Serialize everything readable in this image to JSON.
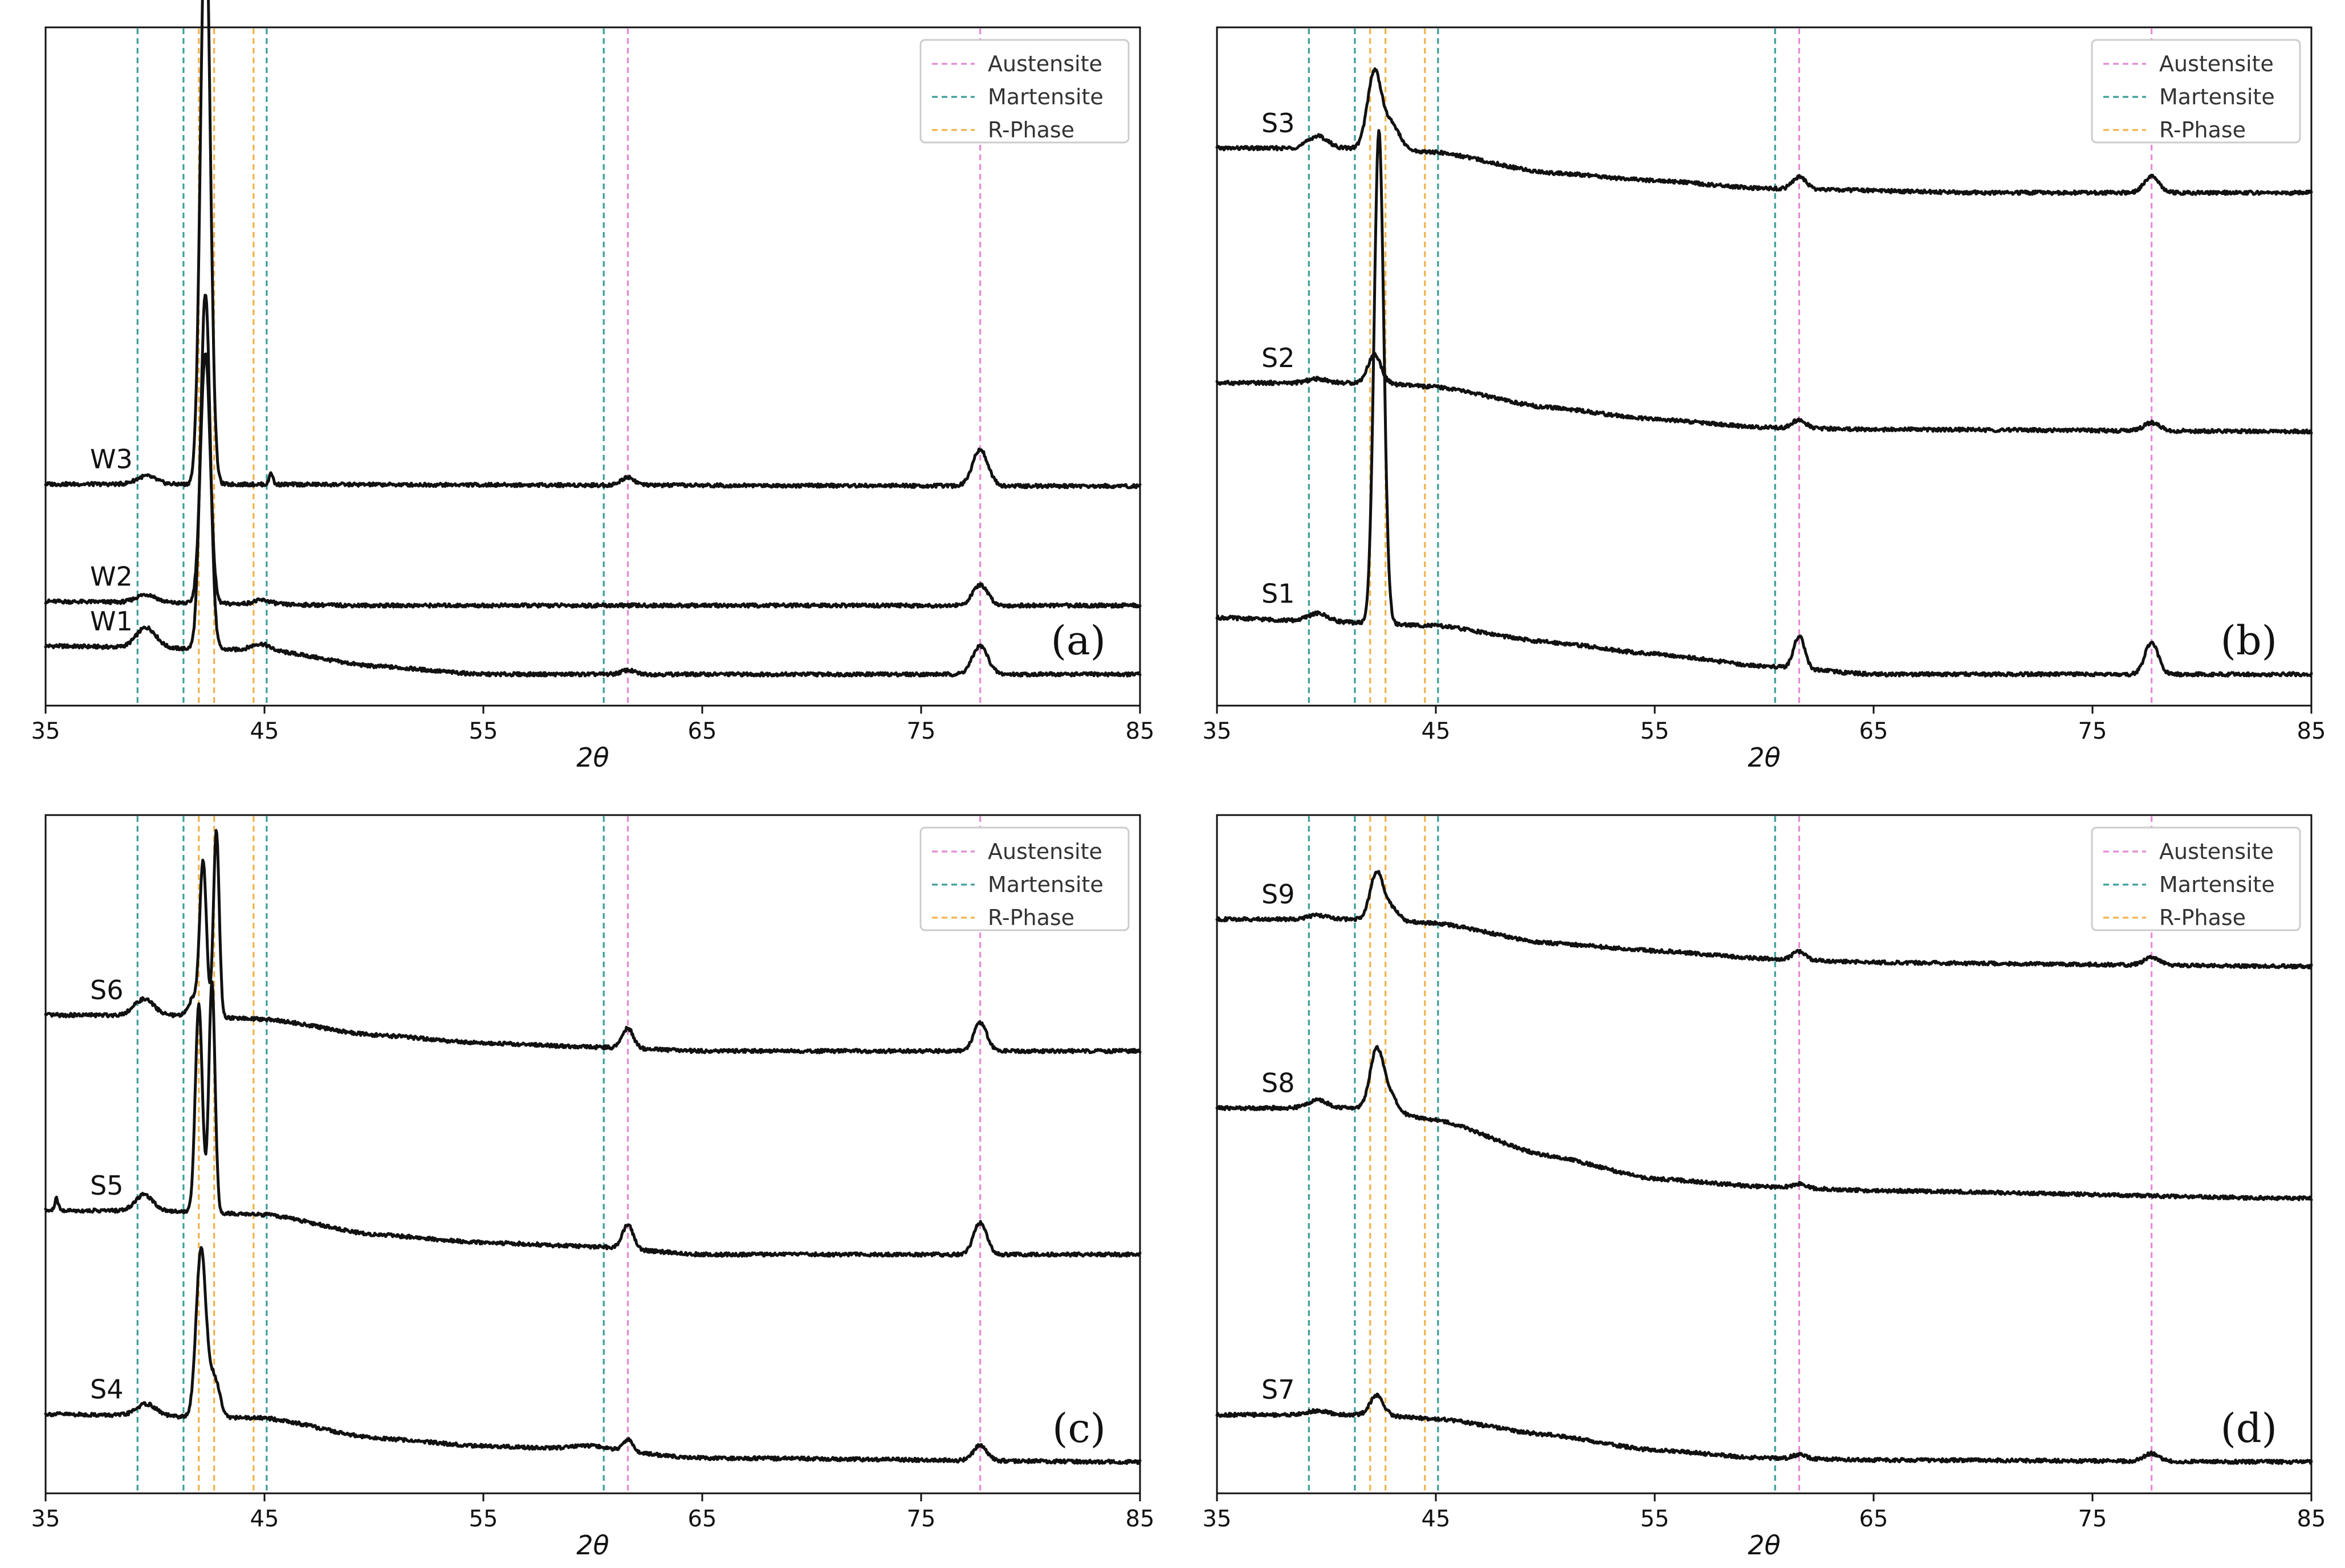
{
  "colors": {
    "Austensite": "#e58ad6",
    "Martensite": "#3c9f9a",
    "R-Phase": "#f0b24a",
    "trace": "#111111"
  },
  "chart_data": [
    {
      "type": "line",
      "panel": "(a)",
      "xlabel": "2θ",
      "xlim": [
        35,
        85
      ],
      "xticks": [
        35,
        45,
        55,
        65,
        75,
        85
      ],
      "legend": {
        "placement": "top-right",
        "entries": [
          "Austensite",
          "Martensite",
          "R-Phase"
        ]
      },
      "phase_lines": {
        "Austensite": [
          61.6,
          77.7
        ],
        "Martensite": [
          39.2,
          41.3,
          45.1,
          60.5
        ],
        "R-Phase": [
          42.0,
          42.7,
          44.5
        ]
      },
      "series": [
        {
          "name": "W1",
          "baseline": [
            [
              35,
              0.07
            ],
            [
              45,
              0.06
            ],
            [
              50,
              0.02
            ],
            [
              55,
              0.0
            ],
            [
              85,
              0.0
            ]
          ],
          "peaks": [
            [
              39.6,
              0.05,
              0.45
            ],
            [
              42.3,
              0.88,
              0.22
            ],
            [
              44.8,
              0.015,
              0.4
            ],
            [
              61.6,
              0.01,
              0.3
            ],
            [
              77.7,
              0.07,
              0.35
            ]
          ]
        },
        {
          "name": "W2",
          "baseline": [
            [
              35,
              0.18
            ],
            [
              50,
              0.17
            ],
            [
              85,
              0.17
            ]
          ],
          "peaks": [
            [
              39.6,
              0.02,
              0.45
            ],
            [
              42.3,
              0.62,
              0.22
            ],
            [
              44.9,
              0.01,
              0.4
            ],
            [
              77.7,
              0.05,
              0.35
            ]
          ]
        },
        {
          "name": "W3",
          "baseline": [
            [
              35,
              0.47
            ],
            [
              85,
              0.465
            ]
          ],
          "peaks": [
            [
              39.6,
              0.02,
              0.45
            ],
            [
              42.3,
              1.45,
              0.22
            ],
            [
              45.3,
              0.03,
              0.08
            ],
            [
              61.6,
              0.02,
              0.3
            ],
            [
              77.7,
              0.09,
              0.35
            ]
          ]
        }
      ],
      "series_labels": [
        "W1",
        "W2",
        "W3"
      ]
    },
    {
      "type": "line",
      "panel": "(b)",
      "xlabel": "2θ",
      "xlim": [
        35,
        85
      ],
      "xticks": [
        35,
        45,
        55,
        65,
        75,
        85
      ],
      "legend": {
        "placement": "top-right",
        "entries": [
          "Austensite",
          "Martensite",
          "R-Phase"
        ]
      },
      "phase_lines": {
        "Austensite": [
          61.6,
          77.7
        ],
        "Martensite": [
          39.2,
          41.3,
          45.1,
          60.5
        ],
        "R-Phase": [
          42.0,
          42.7,
          44.5
        ]
      },
      "series": [
        {
          "name": "S1",
          "baseline": [
            [
              35,
              0.14
            ],
            [
              40,
              0.13
            ],
            [
              45,
              0.12
            ],
            [
              50,
              0.08
            ],
            [
              55,
              0.05
            ],
            [
              60,
              0.02
            ],
            [
              65,
              0.0
            ],
            [
              85,
              0.0
            ]
          ],
          "peaks": [
            [
              39.6,
              0.02,
              0.45
            ],
            [
              42.4,
              1.22,
              0.22
            ],
            [
              61.6,
              0.08,
              0.25
            ],
            [
              77.7,
              0.08,
              0.3
            ]
          ]
        },
        {
          "name": "S2",
          "baseline": [
            [
              35,
              0.72
            ],
            [
              42,
              0.72
            ],
            [
              45,
              0.71
            ],
            [
              50,
              0.66
            ],
            [
              55,
              0.63
            ],
            [
              60,
              0.61
            ],
            [
              65,
              0.605
            ],
            [
              85,
              0.6
            ]
          ],
          "peaks": [
            [
              39.6,
              0.01,
              0.45
            ],
            [
              42.2,
              0.07,
              0.3
            ],
            [
              61.6,
              0.02,
              0.3
            ],
            [
              77.7,
              0.02,
              0.35
            ]
          ]
        },
        {
          "name": "S3",
          "baseline": [
            [
              35,
              1.3
            ],
            [
              42,
              1.3
            ],
            [
              45,
              1.29
            ],
            [
              50,
              1.24
            ],
            [
              55,
              1.22
            ],
            [
              60,
              1.2
            ],
            [
              70,
              1.19
            ],
            [
              85,
              1.19
            ]
          ],
          "peaks": [
            [
              39.6,
              0.03,
              0.45
            ],
            [
              42.2,
              0.19,
              0.32
            ],
            [
              43.0,
              0.06,
              0.35
            ],
            [
              61.6,
              0.03,
              0.3
            ],
            [
              77.7,
              0.04,
              0.35
            ]
          ]
        }
      ],
      "series_labels": [
        "S1",
        "S2",
        "S3"
      ]
    },
    {
      "type": "line",
      "panel": "(c)",
      "xlabel": "2θ",
      "xlim": [
        35,
        85
      ],
      "xticks": [
        35,
        45,
        55,
        65,
        75,
        85
      ],
      "legend": {
        "placement": "top-right",
        "entries": [
          "Austensite",
          "Martensite",
          "R-Phase"
        ]
      },
      "phase_lines": {
        "Austensite": [
          61.6,
          77.7
        ],
        "Martensite": [
          39.2,
          41.3,
          45.1,
          60.5
        ],
        "R-Phase": [
          42.0,
          42.7,
          44.5
        ]
      },
      "series": [
        {
          "name": "S4",
          "baseline": [
            [
              35,
              0.12
            ],
            [
              45,
              0.11
            ],
            [
              50,
              0.06
            ],
            [
              55,
              0.04
            ],
            [
              60,
              0.03
            ],
            [
              65,
              0.01
            ],
            [
              85,
              0.0
            ]
          ],
          "peaks": [
            [
              39.6,
              0.03,
              0.45
            ],
            [
              42.1,
              0.42,
              0.22
            ],
            [
              42.7,
              0.1,
              0.25
            ],
            [
              59.8,
              0.01,
              0.9
            ],
            [
              61.6,
              0.03,
              0.25
            ],
            [
              77.7,
              0.04,
              0.3
            ]
          ]
        },
        {
          "name": "S5",
          "baseline": [
            [
              35,
              0.63
            ],
            [
              40,
              0.63
            ],
            [
              45,
              0.62
            ],
            [
              50,
              0.57
            ],
            [
              55,
              0.55
            ],
            [
              60,
              0.54
            ],
            [
              65,
              0.52
            ],
            [
              85,
              0.52
            ]
          ],
          "peaks": [
            [
              35.5,
              0.03,
              0.08
            ],
            [
              39.5,
              0.04,
              0.4
            ],
            [
              42.0,
              0.52,
              0.16
            ],
            [
              42.6,
              0.58,
              0.14
            ],
            [
              61.6,
              0.06,
              0.25
            ],
            [
              77.7,
              0.08,
              0.3
            ]
          ]
        },
        {
          "name": "S6",
          "baseline": [
            [
              35,
              1.12
            ],
            [
              40,
              1.12
            ],
            [
              45,
              1.11
            ],
            [
              50,
              1.07
            ],
            [
              55,
              1.05
            ],
            [
              60,
              1.04
            ],
            [
              65,
              1.03
            ],
            [
              85,
              1.03
            ]
          ],
          "peaks": [
            [
              39.5,
              0.04,
              0.45
            ],
            [
              41.8,
              0.05,
              0.25
            ],
            [
              42.2,
              0.38,
              0.15
            ],
            [
              42.8,
              0.47,
              0.13
            ],
            [
              61.6,
              0.05,
              0.25
            ],
            [
              77.7,
              0.07,
              0.3
            ]
          ]
        }
      ],
      "series_labels": [
        "S4",
        "S5",
        "S6"
      ]
    },
    {
      "type": "line",
      "panel": "(d)",
      "xlabel": "2θ",
      "xlim": [
        35,
        85
      ],
      "xticks": [
        35,
        45,
        55,
        65,
        75,
        85
      ],
      "legend": {
        "placement": "top-right",
        "entries": [
          "Austensite",
          "Martensite",
          "R-Phase"
        ]
      },
      "phase_lines": {
        "Austensite": [
          61.6,
          77.7
        ],
        "Martensite": [
          39.2,
          41.3,
          45.1,
          60.5
        ],
        "R-Phase": [
          42.0,
          42.7,
          44.5
        ]
      },
      "series": [
        {
          "name": "S7",
          "baseline": [
            [
              35,
              0.12
            ],
            [
              42,
              0.12
            ],
            [
              45,
              0.11
            ],
            [
              50,
              0.07
            ],
            [
              55,
              0.03
            ],
            [
              60,
              0.01
            ],
            [
              65,
              0.005
            ],
            [
              85,
              0.0
            ]
          ],
          "peaks": [
            [
              39.6,
              0.01,
              0.45
            ],
            [
              42.3,
              0.05,
              0.3
            ],
            [
              61.6,
              0.01,
              0.3
            ],
            [
              77.7,
              0.02,
              0.35
            ]
          ]
        },
        {
          "name": "S8",
          "baseline": [
            [
              35,
              0.9
            ],
            [
              42,
              0.9
            ],
            [
              45,
              0.87
            ],
            [
              50,
              0.78
            ],
            [
              55,
              0.72
            ],
            [
              60,
              0.7
            ],
            [
              65,
              0.69
            ],
            [
              85,
              0.67
            ]
          ],
          "peaks": [
            [
              39.6,
              0.02,
              0.45
            ],
            [
              42.3,
              0.15,
              0.3
            ],
            [
              42.9,
              0.04,
              0.3
            ],
            [
              61.6,
              0.01,
              0.3
            ]
          ]
        },
        {
          "name": "S9",
          "baseline": [
            [
              35,
              1.38
            ],
            [
              42,
              1.38
            ],
            [
              45,
              1.37
            ],
            [
              50,
              1.32
            ],
            [
              55,
              1.3
            ],
            [
              60,
              1.28
            ],
            [
              65,
              1.27
            ],
            [
              85,
              1.26
            ]
          ],
          "peaks": [
            [
              39.6,
              0.01,
              0.45
            ],
            [
              42.3,
              0.12,
              0.3
            ],
            [
              43.0,
              0.03,
              0.3
            ],
            [
              61.6,
              0.02,
              0.3
            ],
            [
              77.7,
              0.02,
              0.35
            ]
          ]
        }
      ],
      "series_labels": [
        "S7",
        "S8",
        "S9"
      ]
    }
  ]
}
